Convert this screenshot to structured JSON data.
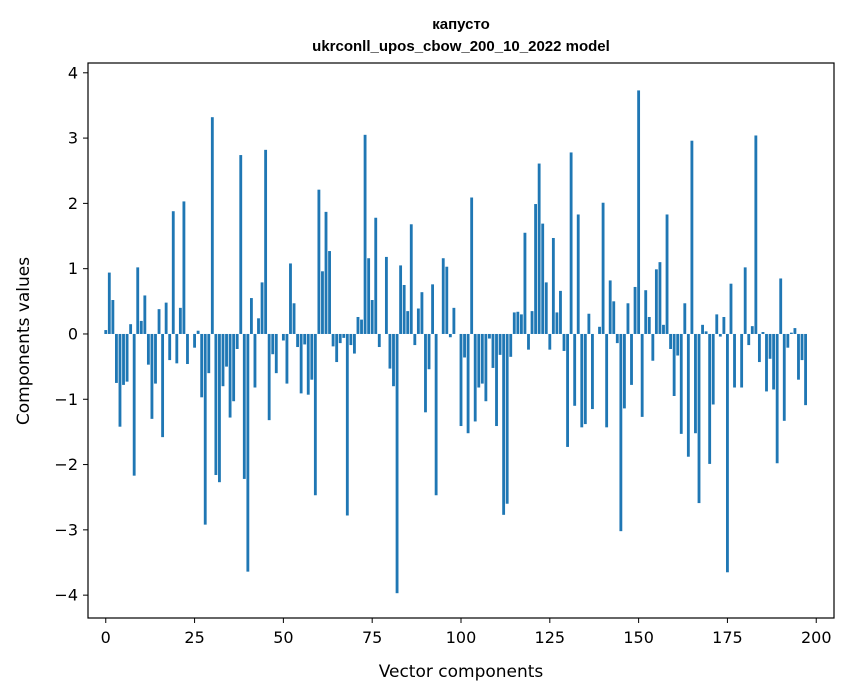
{
  "chart_data": {
    "type": "bar",
    "title": "капусто",
    "subtitle": "ukrconll_upos_cbow_200_10_2022 model",
    "xlabel": "Vector components",
    "ylabel": "Components values",
    "xlim": [
      -5,
      205
    ],
    "ylim": [
      -4.35,
      4.15
    ],
    "xticks": [
      0,
      25,
      50,
      75,
      100,
      125,
      150,
      175,
      200
    ],
    "yticks": [
      -4,
      -3,
      -2,
      -1,
      0,
      1,
      2,
      3,
      4
    ],
    "xtick_labels": [
      "0",
      "25",
      "50",
      "75",
      "100",
      "125",
      "150",
      "175",
      "200"
    ],
    "ytick_labels": [
      "−4",
      "−3",
      "−2",
      "−1",
      "0",
      "1",
      "2",
      "3",
      "4"
    ],
    "bar_color": "#1f77b4",
    "values": [
      0.06,
      0.94,
      0.52,
      -0.75,
      -1.42,
      -0.78,
      -0.73,
      0.15,
      -2.17,
      1.02,
      0.2,
      0.59,
      -0.47,
      -1.3,
      -0.76,
      0.38,
      -1.58,
      0.48,
      -0.4,
      1.88,
      -0.45,
      0.4,
      2.03,
      -0.46,
      0.0,
      -0.21,
      0.05,
      -0.97,
      -2.92,
      -0.6,
      3.32,
      -2.16,
      -2.27,
      -0.8,
      -0.5,
      -1.28,
      -1.03,
      -0.23,
      2.74,
      -2.22,
      -3.64,
      0.55,
      -0.82,
      0.24,
      0.79,
      2.82,
      -1.32,
      -0.31,
      -0.6,
      0.0,
      -0.1,
      -0.76,
      1.08,
      0.47,
      -0.2,
      -0.91,
      -0.16,
      -0.93,
      -0.7,
      -2.47,
      2.21,
      0.96,
      1.87,
      1.27,
      -0.19,
      -0.43,
      -0.14,
      -0.06,
      -2.78,
      -0.17,
      -0.3,
      0.26,
      0.22,
      3.05,
      1.16,
      0.52,
      1.78,
      -0.2,
      0.0,
      1.18,
      -0.53,
      -0.8,
      -3.97,
      1.05,
      0.75,
      0.35,
      1.68,
      -0.17,
      0.39,
      0.64,
      -1.2,
      -0.54,
      0.76,
      -2.47,
      0.0,
      1.16,
      1.03,
      -0.05,
      0.4,
      0.0,
      -1.41,
      -0.36,
      -1.52,
      2.09,
      -1.34,
      -0.82,
      -0.76,
      -1.03,
      -0.07,
      -0.52,
      -1.41,
      -0.32,
      -2.77,
      -2.6,
      -0.35,
      0.33,
      0.34,
      0.3,
      1.55,
      -0.24,
      0.35,
      1.99,
      2.61,
      1.69,
      0.79,
      -0.24,
      1.47,
      0.33,
      0.66,
      -0.26,
      -1.73,
      2.78,
      -1.1,
      1.83,
      -1.43,
      -1.38,
      0.31,
      -1.15,
      -0.0,
      0.11,
      2.01,
      -1.43,
      0.82,
      0.5,
      -0.14,
      -3.02,
      -1.14,
      0.47,
      -0.78,
      0.72,
      3.73,
      -1.27,
      0.67,
      0.26,
      -0.41,
      0.99,
      1.1,
      0.14,
      1.83,
      -0.23,
      -0.95,
      -0.33,
      -1.53,
      0.47,
      -1.88,
      2.96,
      -1.52,
      -2.59,
      0.14,
      0.04,
      -1.99,
      -1.08,
      0.3,
      -0.04,
      0.26,
      -3.65,
      0.77,
      -0.82,
      0.0,
      -0.82,
      1.02,
      -0.17,
      0.12,
      3.04,
      -0.43,
      0.03,
      -0.88,
      -0.38,
      -0.85,
      -1.98,
      0.85,
      -1.33,
      -0.21,
      0.02,
      0.09,
      -0.7,
      -0.4,
      -1.09
    ]
  }
}
